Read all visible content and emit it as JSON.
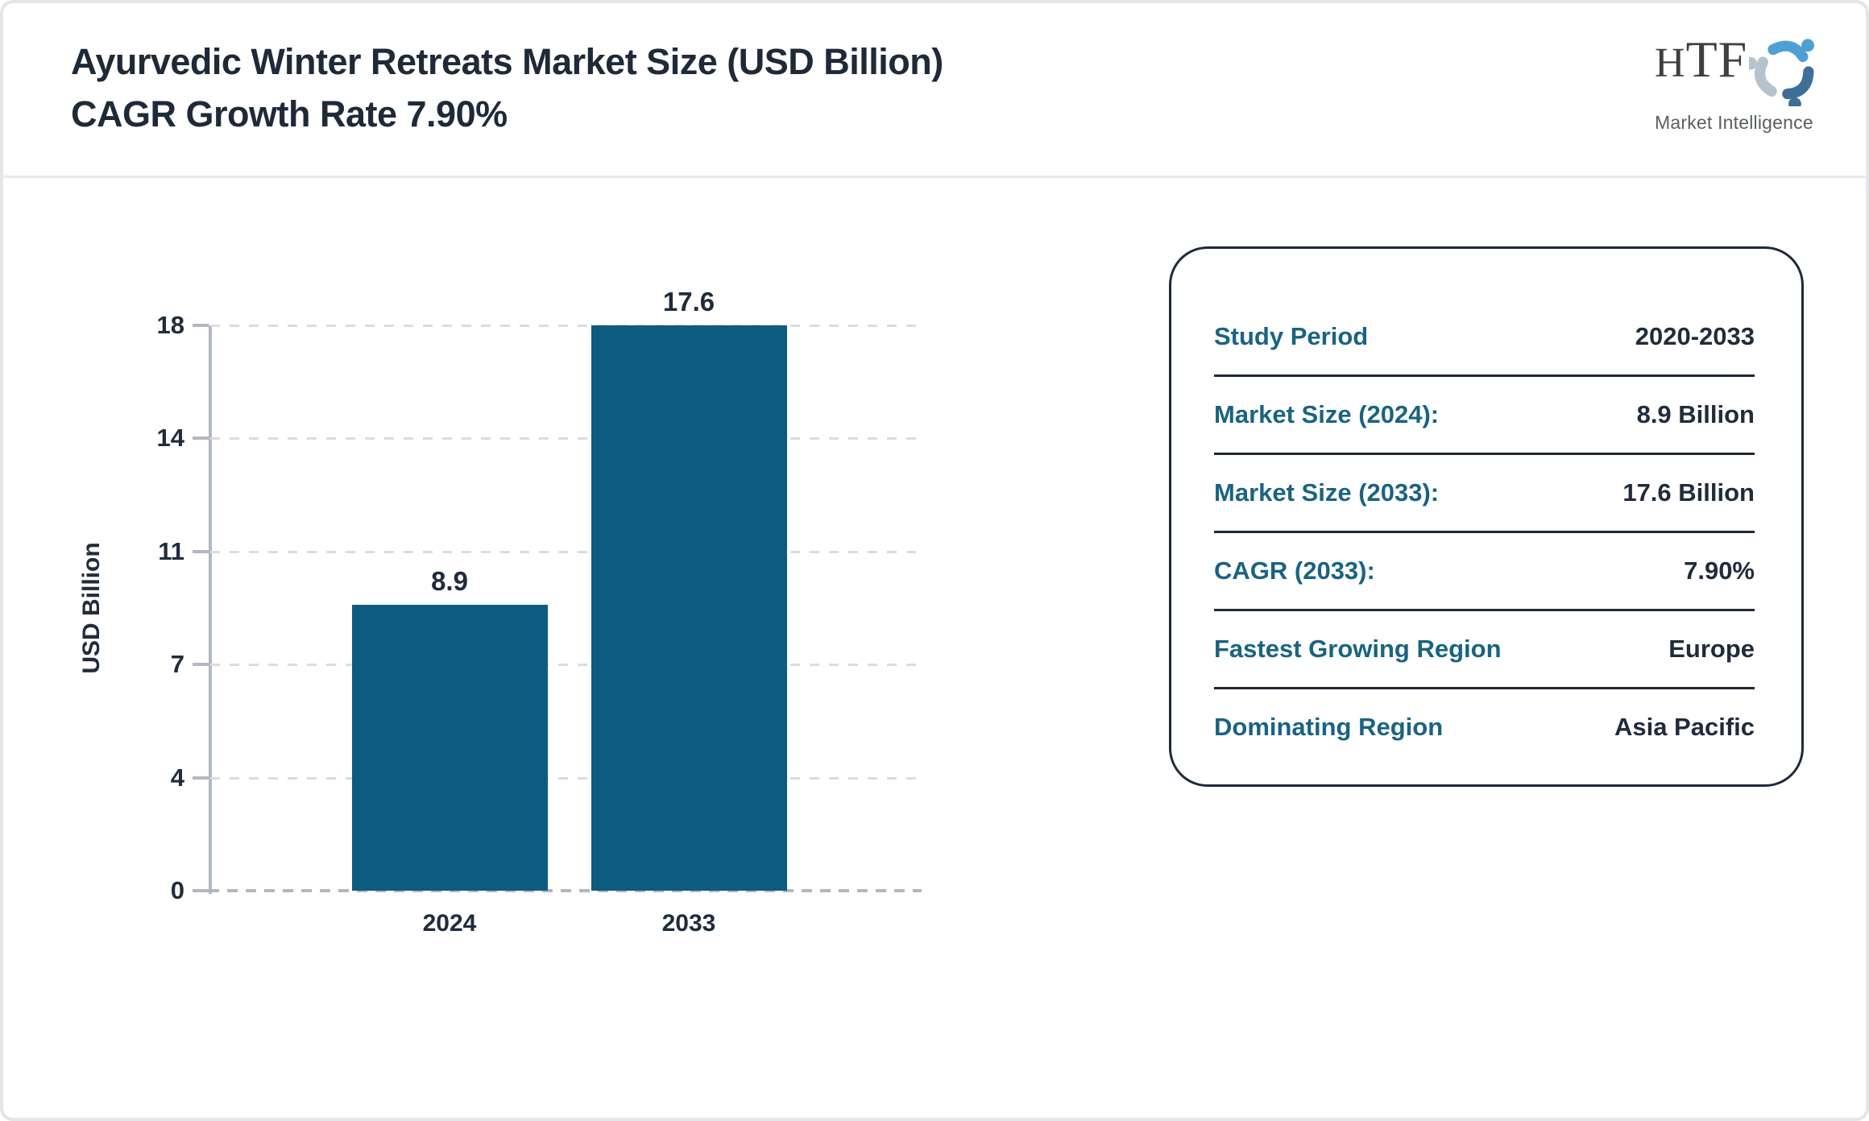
{
  "header": {
    "title": "Ayurvedic Winter Retreats Market Size (USD Billion) CAGR Growth Rate 7.90%"
  },
  "logo": {
    "text": "HTF",
    "subtext": "Market Intelligence",
    "icon": "three-figures-swirl-icon",
    "colors": {
      "figure_top": "#4f9fd4",
      "figure_left": "#b5c3ce",
      "figure_right": "#3e6f99",
      "text": "#3d3f41",
      "subtext": "#5a5f63"
    }
  },
  "chart_data": {
    "type": "bar",
    "title": "Ayurvedic Winter Retreats Market Size (USD Billion) CAGR Growth Rate 7.90%",
    "categories": [
      "2024",
      "2033"
    ],
    "values": [
      8.9,
      17.6
    ],
    "bar_labels": [
      "8.9",
      "17.6"
    ],
    "xlabel": "",
    "ylabel": "USD Billion",
    "ylim": [
      0,
      17.6
    ],
    "y_tick_labels": [
      "0",
      "4",
      "7",
      "11",
      "14",
      "18"
    ],
    "grid": "horizontal-dashed",
    "legend": "none",
    "bar_color": "#0d5c80",
    "text_color": "#202c3c",
    "axis_color": "#b2b8c2"
  },
  "info_panel": {
    "rows": [
      {
        "label": "Study Period",
        "value": "2020-2033"
      },
      {
        "label": "Market Size (2024):",
        "value": "8.9 Billion"
      },
      {
        "label": "Market Size (2033):",
        "value": "17.6 Billion"
      },
      {
        "label": "CAGR (2033):",
        "value": "7.90%"
      },
      {
        "label": "Fastest Growing Region",
        "value": "Europe"
      },
      {
        "label": "Dominating Region",
        "value": "Asia Pacific"
      }
    ],
    "label_color": "#1a6382",
    "value_color": "#202c3c"
  }
}
